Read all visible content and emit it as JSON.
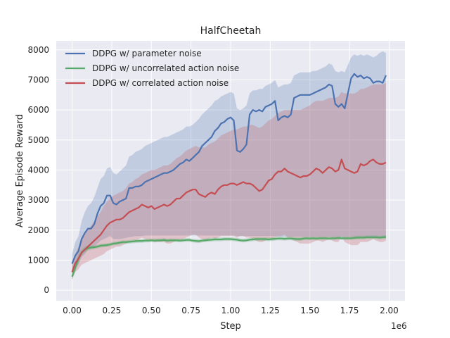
{
  "chart_data": {
    "type": "line",
    "title": "HalfCheetah",
    "xlabel": "Step",
    "ylabel": "Average Episode Reward",
    "x_offset_label": "1e6",
    "xlim": [
      -0.1,
      2.1
    ],
    "ylim": [
      -350,
      8300
    ],
    "xticks": [
      0.0,
      0.25,
      0.5,
      0.75,
      1.0,
      1.25,
      1.5,
      1.75,
      2.0
    ],
    "xtick_labels": [
      "0.00",
      "0.25",
      "0.50",
      "0.75",
      "1.00",
      "1.25",
      "1.50",
      "1.75",
      "2.00"
    ],
    "yticks": [
      0,
      1000,
      2000,
      3000,
      4000,
      5000,
      6000,
      7000,
      8000
    ],
    "ytick_labels": [
      "0",
      "1000",
      "2000",
      "3000",
      "4000",
      "5000",
      "6000",
      "7000",
      "8000"
    ],
    "grid": true,
    "background": "#EAEAF2",
    "legend_position": "top-left",
    "series": [
      {
        "name": "DDPG w/ parameter noise",
        "color": "#4C72B0",
        "x": [
          0.0,
          0.02,
          0.04,
          0.06,
          0.08,
          0.1,
          0.12,
          0.14,
          0.16,
          0.18,
          0.2,
          0.22,
          0.24,
          0.26,
          0.28,
          0.3,
          0.32,
          0.34,
          0.36,
          0.38,
          0.4,
          0.42,
          0.44,
          0.46,
          0.48,
          0.5,
          0.52,
          0.54,
          0.56,
          0.58,
          0.6,
          0.62,
          0.64,
          0.66,
          0.68,
          0.7,
          0.72,
          0.74,
          0.76,
          0.78,
          0.8,
          0.82,
          0.84,
          0.86,
          0.88,
          0.9,
          0.92,
          0.94,
          0.96,
          0.98,
          1.0,
          1.02,
          1.04,
          1.06,
          1.08,
          1.1,
          1.12,
          1.14,
          1.16,
          1.18,
          1.2,
          1.22,
          1.24,
          1.26,
          1.28,
          1.3,
          1.32,
          1.34,
          1.36,
          1.38,
          1.4,
          1.42,
          1.44,
          1.46,
          1.48,
          1.5,
          1.52,
          1.54,
          1.56,
          1.58,
          1.6,
          1.62,
          1.64,
          1.66,
          1.68,
          1.7,
          1.72,
          1.74,
          1.76,
          1.78,
          1.8,
          1.82,
          1.84,
          1.86,
          1.88,
          1.9,
          1.92,
          1.94,
          1.96,
          1.98
        ],
        "values": [
          880,
          1150,
          1300,
          1700,
          1900,
          2050,
          2050,
          2200,
          2550,
          2800,
          2900,
          3150,
          3150,
          2900,
          2850,
          2950,
          3000,
          3050,
          3400,
          3400,
          3450,
          3450,
          3500,
          3600,
          3650,
          3700,
          3750,
          3800,
          3850,
          3900,
          3900,
          3950,
          4000,
          4100,
          4200,
          4250,
          4350,
          4300,
          4400,
          4500,
          4600,
          4800,
          4900,
          5000,
          5100,
          5300,
          5400,
          5550,
          5600,
          5700,
          5750,
          5650,
          4650,
          4600,
          4700,
          4850,
          5850,
          6000,
          5950,
          6000,
          5950,
          6100,
          6150,
          6200,
          6300,
          5650,
          5750,
          5800,
          5750,
          5850,
          6400,
          6450,
          6500,
          6500,
          6500,
          6500,
          6550,
          6600,
          6650,
          6700,
          6750,
          6850,
          6800,
          6200,
          6100,
          6200,
          6050,
          6550,
          7050,
          7200,
          7100,
          7150,
          7050,
          7100,
          7050,
          6900,
          6950,
          6950,
          6900,
          7150
        ],
        "lower": [
          600,
          750,
          850,
          1100,
          1200,
          1350,
          1400,
          1450,
          1550,
          1650,
          1700,
          1750,
          1800,
          1700,
          1700,
          1700,
          1720,
          1740,
          1760,
          1780,
          1800,
          1800,
          1800,
          1820,
          1820,
          1820,
          1820,
          1820,
          1820,
          1820,
          1820,
          1820,
          1820,
          1820,
          1820,
          1820,
          1820,
          1820,
          1820,
          1820,
          1820,
          1820,
          1820,
          1820,
          1820,
          1820,
          1820,
          1820,
          1820,
          1820,
          1820,
          1820,
          1800,
          1800,
          1800,
          1800,
          1800,
          1800,
          1800,
          1800,
          1800,
          1800,
          1800,
          1800,
          1800,
          1780,
          1780,
          1780,
          1780,
          1780,
          1780,
          1780,
          1780,
          1780,
          1780,
          1780,
          1780,
          1780,
          1780,
          1780,
          1780,
          1780,
          1780,
          1780,
          1780,
          1780,
          1780,
          1780,
          1780,
          1780,
          1780,
          1780,
          1780,
          1780,
          1780,
          1780,
          1780,
          1780,
          1780,
          1780
        ],
        "upper": [
          1200,
          1600,
          1800,
          2300,
          2600,
          2800,
          2900,
          3100,
          3400,
          3700,
          3800,
          4050,
          4100,
          3900,
          3850,
          3950,
          4050,
          4150,
          4450,
          4500,
          4600,
          4650,
          4700,
          4800,
          4850,
          4900,
          4950,
          5000,
          5050,
          5100,
          5100,
          5150,
          5200,
          5250,
          5300,
          5350,
          5450,
          5450,
          5500,
          5600,
          5700,
          5850,
          5950,
          6050,
          6150,
          6300,
          6350,
          6450,
          6500,
          6550,
          6600,
          6550,
          6050,
          6000,
          6050,
          6150,
          6550,
          6650,
          6650,
          6700,
          6700,
          6800,
          6850,
          6900,
          7000,
          6750,
          6800,
          6850,
          6850,
          6900,
          7150,
          7200,
          7250,
          7250,
          7250,
          7250,
          7300,
          7300,
          7350,
          7400,
          7450,
          7550,
          7500,
          7300,
          7250,
          7300,
          7250,
          7500,
          7750,
          7850,
          7800,
          7850,
          7800,
          7850,
          7800,
          7750,
          7800,
          7900,
          7950,
          7900
        ]
      },
      {
        "name": "DDPG w/ uncorrelated action noise",
        "color": "#55A868",
        "x": [
          0.0,
          0.02,
          0.04,
          0.06,
          0.08,
          0.1,
          0.12,
          0.14,
          0.16,
          0.18,
          0.2,
          0.22,
          0.24,
          0.26,
          0.28,
          0.3,
          0.32,
          0.34,
          0.36,
          0.38,
          0.4,
          0.42,
          0.44,
          0.46,
          0.48,
          0.5,
          0.52,
          0.54,
          0.56,
          0.58,
          0.6,
          0.62,
          0.64,
          0.66,
          0.68,
          0.7,
          0.72,
          0.74,
          0.76,
          0.78,
          0.8,
          0.82,
          0.84,
          0.86,
          0.88,
          0.9,
          0.92,
          0.94,
          0.96,
          0.98,
          1.0,
          1.02,
          1.04,
          1.06,
          1.08,
          1.1,
          1.12,
          1.14,
          1.16,
          1.18,
          1.2,
          1.22,
          1.24,
          1.26,
          1.28,
          1.3,
          1.32,
          1.34,
          1.36,
          1.38,
          1.4,
          1.42,
          1.44,
          1.46,
          1.48,
          1.5,
          1.52,
          1.54,
          1.56,
          1.58,
          1.6,
          1.62,
          1.64,
          1.66,
          1.68,
          1.7,
          1.72,
          1.74,
          1.76,
          1.78,
          1.8,
          1.82,
          1.84,
          1.86,
          1.88,
          1.9,
          1.92,
          1.94,
          1.96,
          1.98
        ],
        "values": [
          450,
          750,
          1050,
          1250,
          1350,
          1400,
          1420,
          1430,
          1450,
          1480,
          1490,
          1500,
          1520,
          1550,
          1560,
          1580,
          1600,
          1600,
          1610,
          1620,
          1630,
          1640,
          1640,
          1650,
          1650,
          1660,
          1650,
          1660,
          1660,
          1670,
          1650,
          1660,
          1660,
          1660,
          1650,
          1660,
          1670,
          1670,
          1650,
          1640,
          1630,
          1650,
          1660,
          1670,
          1680,
          1690,
          1690,
          1690,
          1700,
          1700,
          1700,
          1690,
          1680,
          1660,
          1650,
          1660,
          1680,
          1690,
          1700,
          1700,
          1700,
          1700,
          1690,
          1700,
          1710,
          1720,
          1720,
          1710,
          1720,
          1720,
          1710,
          1700,
          1700,
          1720,
          1730,
          1720,
          1730,
          1720,
          1730,
          1730,
          1730,
          1720,
          1730,
          1730,
          1740,
          1730,
          1730,
          1730,
          1730,
          1740,
          1750,
          1750,
          1750,
          1760,
          1760,
          1760,
          1760,
          1750,
          1760,
          1770
        ],
        "lower": [
          350,
          620,
          900,
          1150,
          1250,
          1320,
          1350,
          1370,
          1390,
          1420,
          1430,
          1440,
          1460,
          1490,
          1500,
          1520,
          1540,
          1540,
          1550,
          1560,
          1570,
          1580,
          1580,
          1590,
          1590,
          1600,
          1590,
          1600,
          1600,
          1610,
          1590,
          1600,
          1600,
          1600,
          1590,
          1600,
          1610,
          1610,
          1590,
          1580,
          1570,
          1590,
          1600,
          1610,
          1620,
          1630,
          1630,
          1630,
          1640,
          1640,
          1640,
          1630,
          1620,
          1600,
          1590,
          1600,
          1620,
          1630,
          1640,
          1640,
          1640,
          1640,
          1630,
          1640,
          1650,
          1660,
          1660,
          1650,
          1660,
          1660,
          1650,
          1640,
          1640,
          1660,
          1670,
          1660,
          1670,
          1660,
          1670,
          1670,
          1670,
          1660,
          1670,
          1670,
          1680,
          1670,
          1670,
          1670,
          1670,
          1680,
          1690,
          1690,
          1690,
          1700,
          1700,
          1700,
          1700,
          1690,
          1700,
          1710
        ],
        "upper": [
          550,
          880,
          1200,
          1350,
          1450,
          1480,
          1490,
          1490,
          1510,
          1540,
          1550,
          1560,
          1580,
          1610,
          1620,
          1640,
          1660,
          1660,
          1670,
          1680,
          1690,
          1700,
          1700,
          1710,
          1710,
          1720,
          1710,
          1720,
          1720,
          1730,
          1710,
          1720,
          1720,
          1720,
          1710,
          1720,
          1730,
          1730,
          1710,
          1700,
          1690,
          1710,
          1720,
          1730,
          1740,
          1750,
          1750,
          1750,
          1760,
          1760,
          1760,
          1750,
          1740,
          1720,
          1710,
          1720,
          1740,
          1750,
          1760,
          1760,
          1760,
          1760,
          1750,
          1760,
          1770,
          1780,
          1780,
          1770,
          1780,
          1780,
          1770,
          1760,
          1760,
          1780,
          1790,
          1780,
          1790,
          1780,
          1790,
          1790,
          1790,
          1780,
          1790,
          1790,
          1800,
          1790,
          1790,
          1790,
          1790,
          1800,
          1810,
          1810,
          1810,
          1820,
          1820,
          1820,
          1820,
          1810,
          1820,
          1830
        ]
      },
      {
        "name": "DDPG w/ correlated action noise",
        "color": "#C44E52",
        "x": [
          0.0,
          0.02,
          0.04,
          0.06,
          0.08,
          0.1,
          0.12,
          0.14,
          0.16,
          0.18,
          0.2,
          0.22,
          0.24,
          0.26,
          0.28,
          0.3,
          0.32,
          0.34,
          0.36,
          0.38,
          0.4,
          0.42,
          0.44,
          0.46,
          0.48,
          0.5,
          0.52,
          0.54,
          0.56,
          0.58,
          0.6,
          0.62,
          0.64,
          0.66,
          0.68,
          0.7,
          0.72,
          0.74,
          0.76,
          0.78,
          0.8,
          0.82,
          0.84,
          0.86,
          0.88,
          0.9,
          0.92,
          0.94,
          0.96,
          0.98,
          1.0,
          1.02,
          1.04,
          1.06,
          1.08,
          1.1,
          1.12,
          1.14,
          1.16,
          1.18,
          1.2,
          1.22,
          1.24,
          1.26,
          1.28,
          1.3,
          1.32,
          1.34,
          1.36,
          1.38,
          1.4,
          1.42,
          1.44,
          1.46,
          1.48,
          1.5,
          1.52,
          1.54,
          1.56,
          1.58,
          1.6,
          1.62,
          1.64,
          1.66,
          1.68,
          1.7,
          1.72,
          1.74,
          1.76,
          1.78,
          1.8,
          1.82,
          1.84,
          1.86,
          1.88,
          1.9,
          1.92,
          1.94,
          1.96,
          1.98
        ],
        "values": [
          600,
          900,
          1050,
          1250,
          1350,
          1450,
          1550,
          1650,
          1750,
          1850,
          2000,
          2150,
          2250,
          2300,
          2350,
          2350,
          2400,
          2500,
          2600,
          2650,
          2700,
          2750,
          2850,
          2800,
          2750,
          2800,
          2700,
          2750,
          2800,
          2850,
          2800,
          2850,
          2950,
          3050,
          3050,
          3150,
          3250,
          3300,
          3350,
          3350,
          3200,
          3150,
          3100,
          3200,
          3250,
          3200,
          3350,
          3450,
          3500,
          3500,
          3550,
          3550,
          3500,
          3550,
          3600,
          3550,
          3550,
          3500,
          3400,
          3300,
          3350,
          3500,
          3650,
          3700,
          3850,
          3950,
          3950,
          4050,
          3950,
          3900,
          3850,
          3800,
          3750,
          3800,
          3800,
          3850,
          3950,
          4050,
          4000,
          3900,
          4000,
          4100,
          4050,
          3950,
          4000,
          4350,
          4050,
          4000,
          3950,
          3900,
          3950,
          4200,
          4150,
          4200,
          4300,
          4350,
          4250,
          4200,
          4200,
          4250
        ]
      }
    ],
    "band_upper_correlated": [
      800,
      1200,
      1450,
      1700,
      1850,
      2000,
      2150,
      2300,
      2450,
      2600,
      2800,
      2950,
      3050,
      3150,
      3200,
      3250,
      3300,
      3400,
      3550,
      3600,
      3700,
      3750,
      3850,
      3900,
      3950,
      4000,
      4000,
      4050,
      4100,
      4150,
      4150,
      4200,
      4300,
      4400,
      4450,
      4550,
      4650,
      4700,
      4750,
      4800,
      4750,
      4750,
      4750,
      4850,
      4900,
      4950,
      5050,
      5150,
      5200,
      5250,
      5300,
      5350,
      5350,
      5400,
      5450,
      5450,
      5500,
      5500,
      5450,
      5400,
      5450,
      5550,
      5650,
      5700,
      5800,
      5900,
      5950,
      6000,
      6000,
      6000,
      6000,
      6000,
      6000,
      6050,
      6100,
      6150,
      6250,
      6300,
      6300,
      6300,
      6350,
      6400,
      6400,
      6400,
      6450,
      6600,
      6550,
      6550,
      6550,
      6550,
      6600,
      6700,
      6700,
      6750,
      6800,
      6850,
      6850,
      6850,
      6850,
      6900
    ],
    "band_lower_correlated": [
      350,
      600,
      700,
      850,
      900,
      950,
      1000,
      1050,
      1100,
      1150,
      1200,
      1300,
      1350,
      1400,
      1450,
      1450,
      1500,
      1550,
      1600,
      1650,
      1650,
      1700,
      1750,
      1700,
      1650,
      1650,
      1600,
      1600,
      1600,
      1600,
      1550,
      1550,
      1600,
      1650,
      1650,
      1700,
      1750,
      1800,
      1850,
      1850,
      1750,
      1700,
      1650,
      1700,
      1750,
      1700,
      1750,
      1800,
      1800,
      1800,
      1800,
      1800,
      1750,
      1800,
      1800,
      1750,
      1750,
      1700,
      1650,
      1600,
      1600,
      1650,
      1700,
      1700,
      1750,
      1800,
      1800,
      1850,
      1750,
      1700,
      1650,
      1600,
      1550,
      1550,
      1550,
      1550,
      1600,
      1650,
      1650,
      1600,
      1650,
      1700,
      1650,
      1600,
      1600,
      1800,
      1600,
      1550,
      1500,
      1500,
      1500,
      1600,
      1600,
      1600,
      1650,
      1700,
      1650,
      1600,
      1600,
      1650
    ]
  }
}
